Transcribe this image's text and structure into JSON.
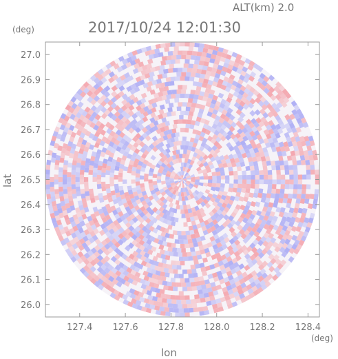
{
  "header": {
    "altitude_label": "ALT(km)  2.0",
    "datetime": "2017/10/24 12:01:30"
  },
  "axes": {
    "y_unit": "(deg)",
    "x_unit": "(deg)",
    "xlabel": "lon",
    "ylabel": "lat"
  },
  "chart_data": {
    "type": "heatmap",
    "title": "2017/10/24 12:01:30",
    "xlabel": "lon",
    "ylabel": "lat",
    "xlim": [
      127.25,
      128.45
    ],
    "ylim": [
      25.95,
      27.05
    ],
    "x_ticks": [
      "127.4",
      "127.6",
      "127.8",
      "128.0",
      "128.2",
      "128.4"
    ],
    "x_tick_values": [
      127.4,
      127.6,
      127.8,
      128.0,
      128.2,
      128.4
    ],
    "y_ticks": [
      "27.0",
      "26.9",
      "26.8",
      "26.7",
      "26.6",
      "26.5",
      "26.4",
      "26.3",
      "26.2",
      "26.1",
      "26.0"
    ],
    "y_tick_values": [
      27.0,
      26.9,
      26.8,
      26.7,
      26.6,
      26.5,
      26.4,
      26.3,
      26.2,
      26.1,
      26.0
    ],
    "radar_center": [
      127.85,
      26.5
    ],
    "radar_range_deg": [
      0.6,
      0.55
    ],
    "colors": {
      "positive": "#f4a0a8",
      "negative": "#a8a8f4",
      "frame": "#888888"
    }
  }
}
